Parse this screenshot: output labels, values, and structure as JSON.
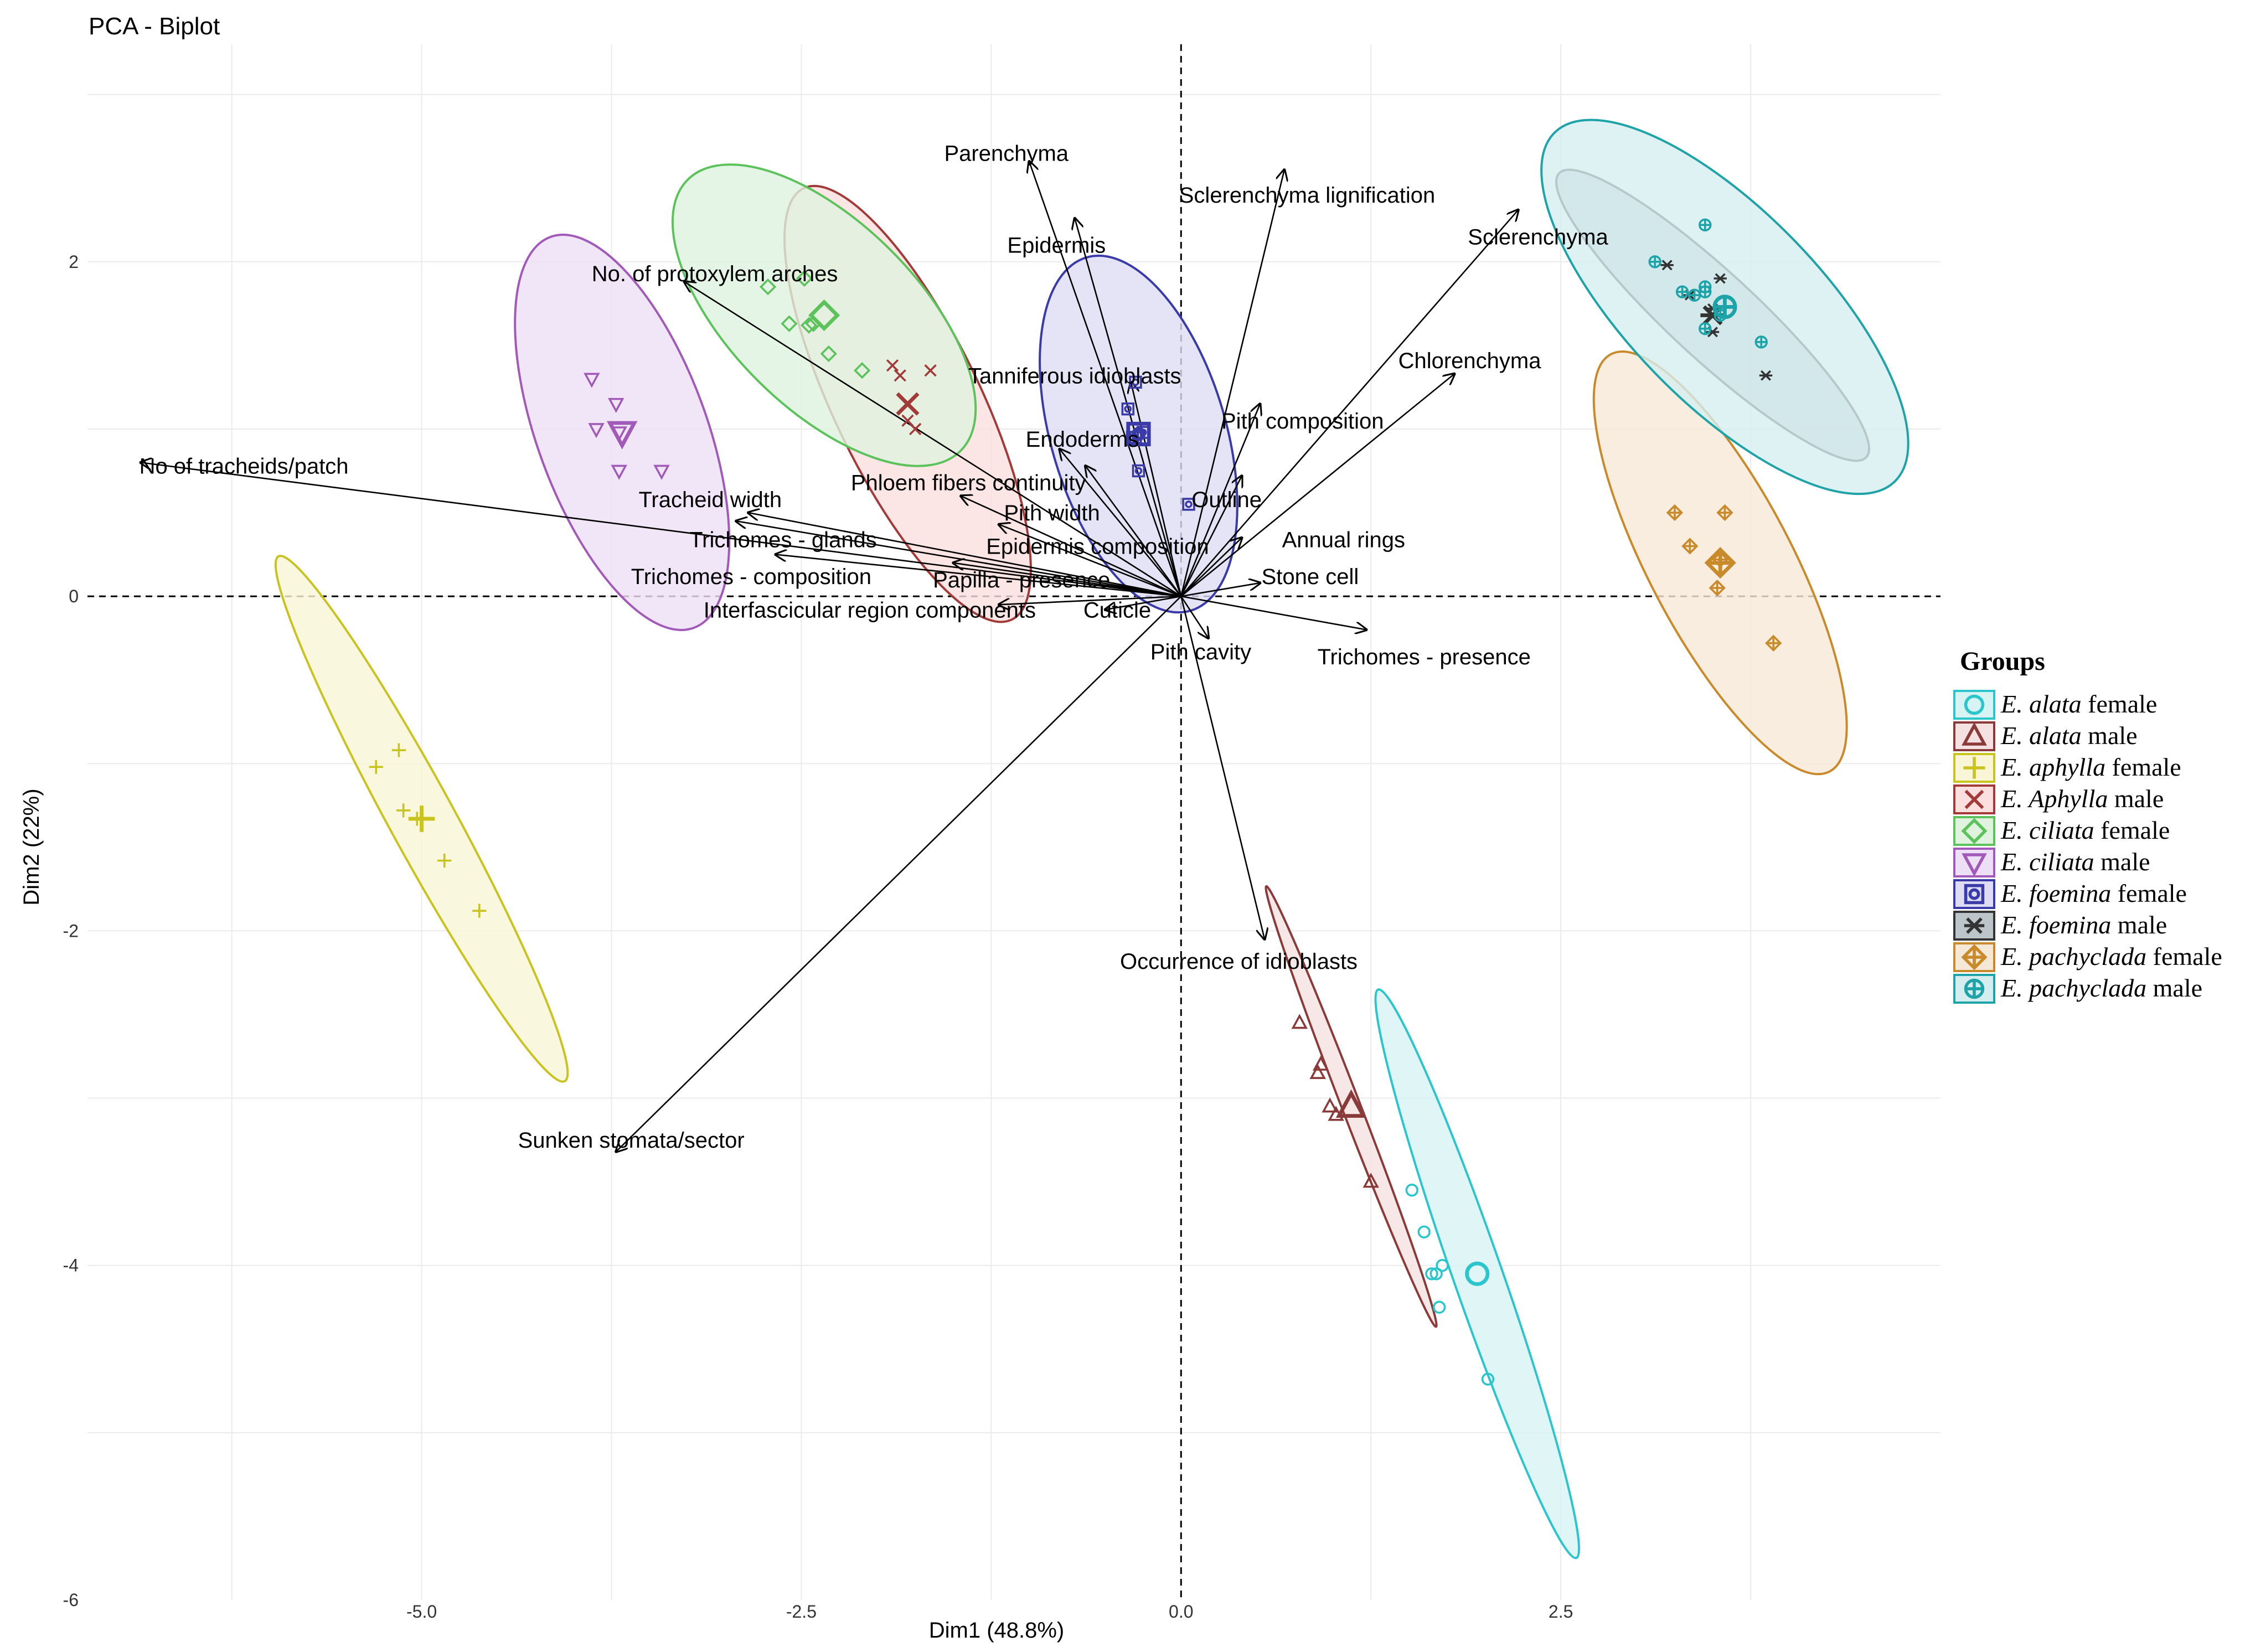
{
  "chart_data": {
    "type": "scatter",
    "subtype": "pca-biplot",
    "title": "PCA - Biplot",
    "xlabel": "Dim1 (48.8%)",
    "ylabel": "Dim2 (22%)",
    "xlim": [
      -7.2,
      5.0
    ],
    "ylim": [
      -6.0,
      3.3
    ],
    "xticks": [
      -5.0,
      -2.5,
      0.0,
      2.5
    ],
    "xtick_labels": [
      "-5.0",
      "-2.5",
      "0.0",
      "2.5"
    ],
    "yticks": [
      -6,
      -4,
      -2,
      0,
      2
    ],
    "ytick_labels": [
      "-6",
      "-4",
      "-2",
      "0",
      "2"
    ],
    "grid": true,
    "legend_title": "Groups",
    "legend_position": "right",
    "groups": [
      {
        "name": "E. alata female",
        "species": "E. alata",
        "sex": "female",
        "color": "#2bc6cc",
        "fill": "#d7f3f4",
        "marker": "circle",
        "ellipse": {
          "cx": 1.95,
          "cy": -4.05,
          "rx": 1.82,
          "ry": 0.16,
          "angle": -69
        },
        "points": [
          [
            1.52,
            -3.55
          ],
          [
            1.6,
            -3.8
          ],
          [
            1.65,
            -4.05
          ],
          [
            1.72,
            -4.0
          ],
          [
            1.7,
            -4.25
          ],
          [
            2.02,
            -4.68
          ],
          [
            1.68,
            -4.05
          ]
        ]
      },
      {
        "name": "E. alata male",
        "species": "E. alata",
        "sex": "male",
        "color": "#8b3a3a",
        "fill": "#f5e1e1",
        "marker": "triangle",
        "ellipse": {
          "cx": 1.12,
          "cy": -3.05,
          "rx": 1.43,
          "ry": 0.06,
          "angle": -67
        },
        "points": [
          [
            0.78,
            -2.55
          ],
          [
            0.92,
            -2.8
          ],
          [
            0.98,
            -3.05
          ],
          [
            1.02,
            -3.1
          ],
          [
            1.25,
            -3.5
          ],
          [
            0.9,
            -2.85
          ]
        ]
      },
      {
        "name": "E. aphylla female",
        "species": "E. aphylla",
        "sex": "female",
        "color": "#c9c31f",
        "fill": "#f8f6d6",
        "marker": "plus",
        "ellipse": {
          "cx": -5.0,
          "cy": -1.33,
          "rx": 1.83,
          "ry": 0.21,
          "angle": -59
        },
        "points": [
          [
            -5.3,
            -1.02
          ],
          [
            -5.15,
            -0.92
          ],
          [
            -5.12,
            -1.28
          ],
          [
            -4.85,
            -1.58
          ],
          [
            -4.62,
            -1.88
          ],
          [
            -5.03,
            -1.33
          ]
        ]
      },
      {
        "name": "E. Aphylla male",
        "species": "E. Aphylla",
        "sex": "male",
        "color": "#a23a3a",
        "fill": "#fbdede",
        "marker": "cross",
        "ellipse": {
          "cx": -1.8,
          "cy": 1.15,
          "rx": 1.46,
          "ry": 0.47,
          "angle": -62
        },
        "points": [
          [
            -1.9,
            1.38
          ],
          [
            -1.65,
            1.35
          ],
          [
            -1.75,
            1.0
          ],
          [
            -1.8,
            1.05
          ],
          [
            -1.85,
            1.32
          ]
        ]
      },
      {
        "name": "E. ciliata female",
        "species": "E. ciliata",
        "sex": "female",
        "color": "#5cc25c",
        "fill": "#dff3df",
        "marker": "diamond",
        "ellipse": {
          "cx": -2.35,
          "cy": 1.68,
          "rx": 1.21,
          "ry": 0.58,
          "angle": -42
        },
        "points": [
          [
            -2.72,
            1.85
          ],
          [
            -2.48,
            1.9
          ],
          [
            -2.58,
            1.63
          ],
          [
            -2.45,
            1.62
          ],
          [
            -2.32,
            1.45
          ],
          [
            -2.1,
            1.35
          ],
          [
            -2.42,
            1.63
          ]
        ]
      },
      {
        "name": "E. ciliata male",
        "species": "E. ciliata",
        "sex": "male",
        "color": "#a15ab8",
        "fill": "#ede0f6",
        "marker": "triangle-down",
        "ellipse": {
          "cx": -3.68,
          "cy": 0.98,
          "rx": 1.26,
          "ry": 0.55,
          "angle": -68
        },
        "points": [
          [
            -3.88,
            1.3
          ],
          [
            -3.72,
            1.15
          ],
          [
            -3.85,
            1.0
          ],
          [
            -3.7,
            0.75
          ],
          [
            -3.42,
            0.75
          ],
          [
            -3.7,
            0.98
          ]
        ]
      },
      {
        "name": "E. foemina female",
        "species": "E. foemina",
        "sex": "female",
        "color": "#3a3aa8",
        "fill": "#dedcf4",
        "marker": "square-circle",
        "ellipse": {
          "cx": -0.28,
          "cy": 0.97,
          "rx": 1.11,
          "ry": 0.57,
          "angle": -72
        },
        "points": [
          [
            -0.3,
            1.28
          ],
          [
            -0.35,
            1.12
          ],
          [
            -0.25,
            0.98
          ],
          [
            -0.32,
            0.95
          ],
          [
            -0.28,
            0.75
          ],
          [
            0.05,
            0.55
          ],
          [
            -0.3,
            0.95
          ]
        ]
      },
      {
        "name": "E. foemina male",
        "species": "E. foemina",
        "sex": "male",
        "color": "#333333",
        "fill": "#bcc6ca",
        "marker": "asterisk",
        "ellipse": {
          "cx": 3.5,
          "cy": 1.68,
          "rx": 1.32,
          "ry": 0.27,
          "angle": -40
        },
        "points": [
          [
            3.2,
            1.98
          ],
          [
            3.55,
            1.9
          ],
          [
            3.5,
            1.58
          ],
          [
            3.85,
            1.32
          ],
          [
            3.35,
            1.8
          ],
          [
            3.5,
            1.72
          ]
        ]
      },
      {
        "name": "E. pachyclada female",
        "species": "E. pachyclada",
        "sex": "female",
        "color": "#c88a2a",
        "fill": "#f6e8d6",
        "marker": "diamond-plus",
        "ellipse": {
          "cx": 3.55,
          "cy": 0.2,
          "rx": 1.44,
          "ry": 0.46,
          "angle": -60
        },
        "points": [
          [
            3.25,
            0.5
          ],
          [
            3.58,
            0.5
          ],
          [
            3.35,
            0.3
          ],
          [
            3.53,
            0.05
          ],
          [
            3.9,
            -0.28
          ],
          [
            3.55,
            0.22
          ]
        ]
      },
      {
        "name": "E. pachyclada male",
        "species": "E. pachyclada",
        "sex": "male",
        "color": "#1ea3a8",
        "fill": "#d6edf0",
        "marker": "circle-plus",
        "ellipse": {
          "cx": 3.58,
          "cy": 1.73,
          "rx": 1.53,
          "ry": 0.6,
          "angle": -43
        },
        "points": [
          [
            3.12,
            2.0
          ],
          [
            3.45,
            2.22
          ],
          [
            3.3,
            1.82
          ],
          [
            3.45,
            1.85
          ],
          [
            3.55,
            1.68
          ],
          [
            3.45,
            1.6
          ],
          [
            3.82,
            1.52
          ],
          [
            3.38,
            1.8
          ],
          [
            3.45,
            1.82
          ]
        ]
      }
    ],
    "variables": [
      {
        "name": "Parenchyma",
        "end": [
          -1.0,
          2.6
        ],
        "label_at": [
          -1.15,
          2.65
        ]
      },
      {
        "name": "Sclerenchyma lignification",
        "end": [
          0.68,
          2.55
        ],
        "label_at": [
          0.83,
          2.4
        ]
      },
      {
        "name": "Sclerenchyma",
        "end": [
          2.22,
          2.31
        ],
        "label_at": [
          2.35,
          2.15
        ]
      },
      {
        "name": "Epidermis",
        "end": [
          -0.7,
          2.26
        ],
        "label_at": [
          -0.82,
          2.1
        ]
      },
      {
        "name": "No. of protoxylem arches",
        "end": [
          -3.27,
          1.88
        ],
        "label_at": [
          -3.07,
          1.93
        ]
      },
      {
        "name": "Chlorenchyma",
        "end": [
          1.8,
          1.33
        ],
        "label_at": [
          1.9,
          1.41
        ]
      },
      {
        "name": "Tanniferous idioblasts",
        "end": [
          -0.33,
          1.28
        ],
        "label_at": [
          -0.7,
          1.32
        ]
      },
      {
        "name": "Pith composition",
        "end": [
          0.52,
          1.15
        ],
        "label_at": [
          0.8,
          1.05
        ]
      },
      {
        "name": "Endoderms",
        "end": [
          -0.8,
          0.88
        ],
        "label_at": [
          -0.65,
          0.94
        ]
      },
      {
        "name": "No of tracheids/patch",
        "end": [
          -6.85,
          0.8
        ],
        "label_at": [
          -6.17,
          0.78
        ]
      },
      {
        "name": "Phloem fibers continuity",
        "end": [
          -0.63,
          0.78
        ],
        "label_at": [
          -1.4,
          0.68
        ]
      },
      {
        "name": "Outline",
        "end": [
          0.4,
          0.72
        ],
        "label_at": [
          0.3,
          0.58
        ]
      },
      {
        "name": "Tracheid width",
        "end": [
          -2.85,
          0.5
        ],
        "label_at": [
          -3.1,
          0.58
        ]
      },
      {
        "name": "Pith width",
        "end": [
          -1.45,
          0.6
        ],
        "label_at": [
          -0.85,
          0.5
        ]
      },
      {
        "name": "Trichomes - glands",
        "end": [
          -2.93,
          0.45
        ],
        "label_at": [
          -2.62,
          0.34
        ]
      },
      {
        "name": "Epidermis composition",
        "end": [
          -1.2,
          0.43
        ],
        "label_at": [
          -0.55,
          0.3
        ]
      },
      {
        "name": "Annual rings",
        "end": [
          0.4,
          0.35
        ],
        "label_at": [
          1.07,
          0.34
        ]
      },
      {
        "name": "Trichomes - composition",
        "end": [
          -2.67,
          0.25
        ],
        "label_at": [
          -2.83,
          0.12
        ]
      },
      {
        "name": "Papilla - presence",
        "end": [
          -1.5,
          0.2
        ],
        "label_at": [
          -1.05,
          0.1
        ]
      },
      {
        "name": "Stone cell",
        "end": [
          0.52,
          0.08
        ],
        "label_at": [
          0.85,
          0.12
        ]
      },
      {
        "name": "Interfascicular region components",
        "end": [
          -1.2,
          -0.05
        ],
        "label_at": [
          -2.05,
          -0.08
        ]
      },
      {
        "name": "Cuticle",
        "end": [
          -0.5,
          -0.08
        ],
        "label_at": [
          -0.42,
          -0.08
        ]
      },
      {
        "name": "Pith cavity",
        "end": [
          0.18,
          -0.25
        ],
        "label_at": [
          0.13,
          -0.33
        ]
      },
      {
        "name": "Trichomes - presence",
        "end": [
          1.22,
          -0.2
        ],
        "label_at": [
          1.6,
          -0.36
        ]
      },
      {
        "name": "Occurrence of idioblasts",
        "end": [
          0.55,
          -2.05
        ],
        "label_at": [
          0.38,
          -2.18
        ]
      },
      {
        "name": "Sunken stomata/sector",
        "end": [
          -3.72,
          -3.32
        ],
        "label_at": [
          -3.62,
          -3.25
        ]
      }
    ]
  },
  "legend": {
    "title": "Groups",
    "items": [
      {
        "species": "E. alata",
        "sex": "female"
      },
      {
        "species": "E. alata",
        "sex": "male"
      },
      {
        "species": "E. aphylla",
        "sex": "female"
      },
      {
        "species": "E. Aphylla",
        "sex": "male"
      },
      {
        "species": "E. ciliata",
        "sex": "female"
      },
      {
        "species": "E. ciliata",
        "sex": "male"
      },
      {
        "species": "E. foemina",
        "sex": "female"
      },
      {
        "species": "E. foemina",
        "sex": "male"
      },
      {
        "species": "E. pachyclada",
        "sex": "female"
      },
      {
        "species": "E. pachyclada",
        "sex": "male"
      }
    ]
  }
}
